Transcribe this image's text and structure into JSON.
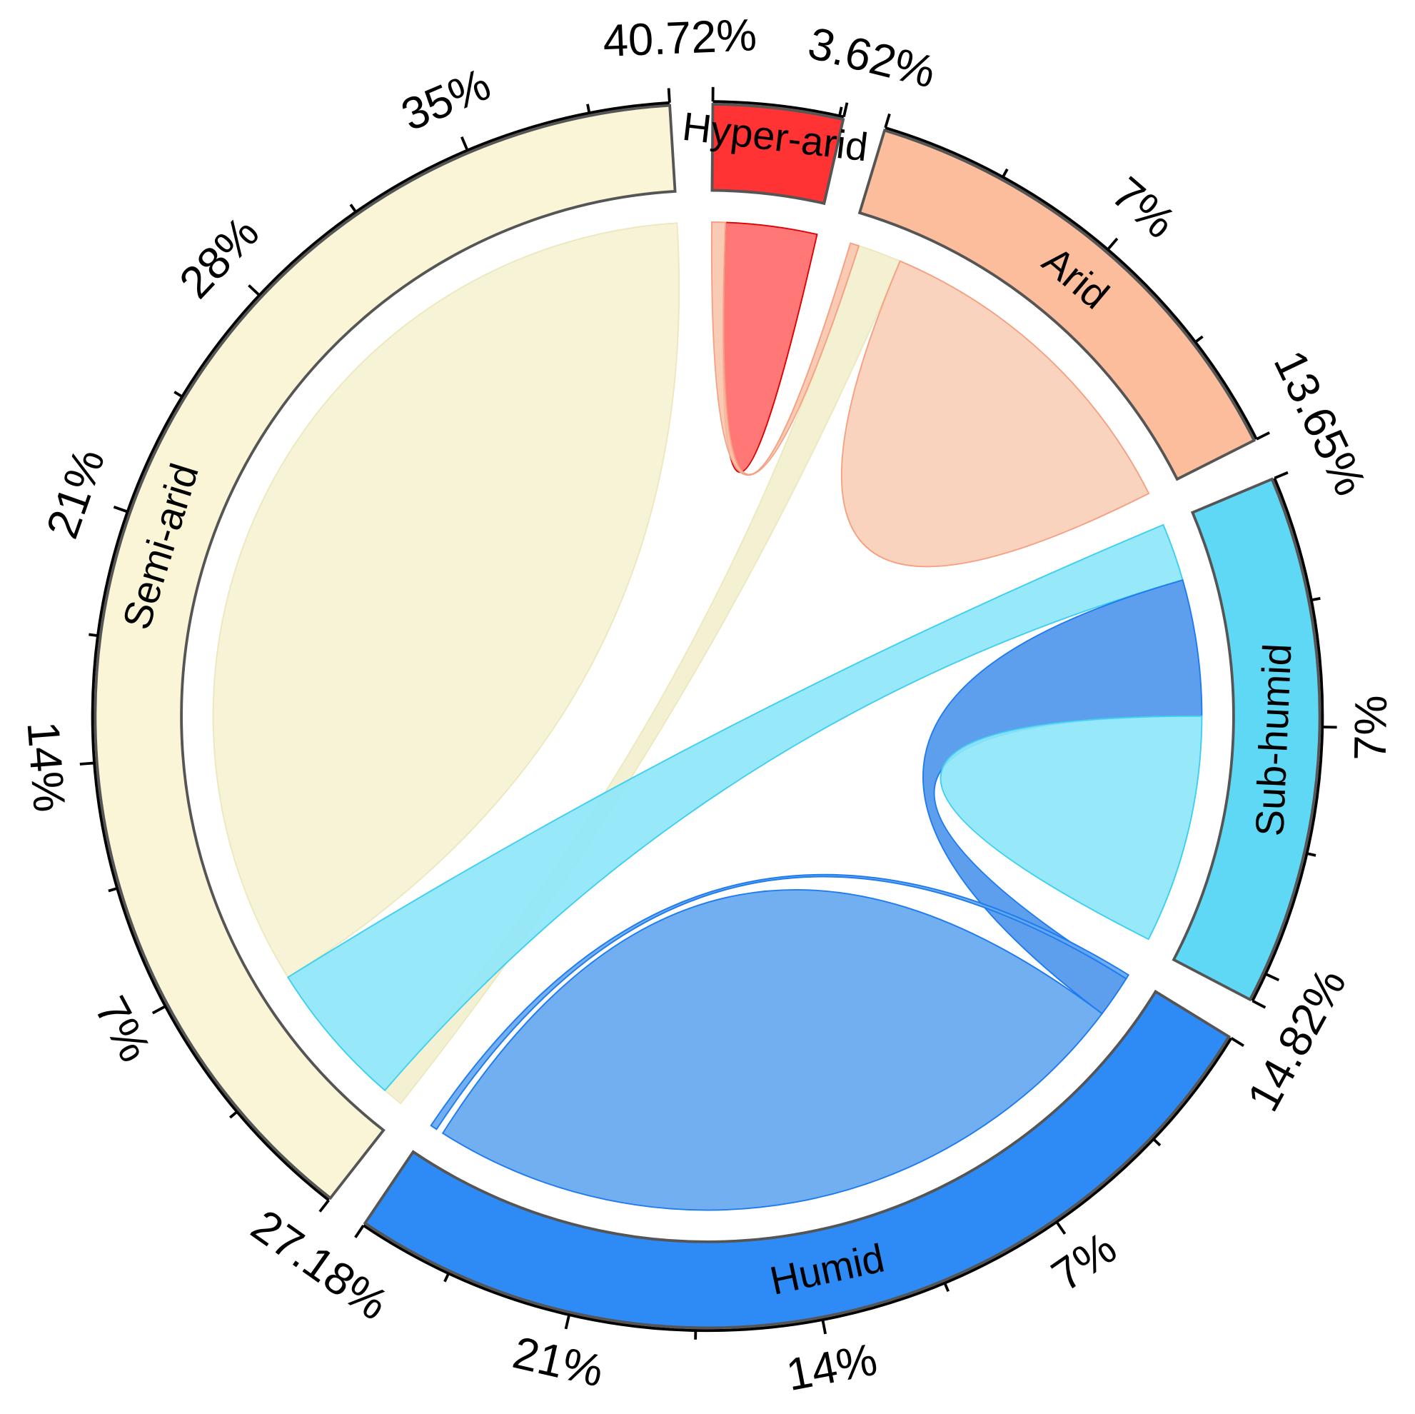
{
  "chart_data": {
    "type": "chord",
    "title": "",
    "sectors": [
      {
        "name": "Hyper-arid",
        "total": 3.62,
        "total_label": "3.62%",
        "color": "#FF3333",
        "tick_labels": []
      },
      {
        "name": "Arid",
        "total": 13.65,
        "total_label": "13.65%",
        "color": "#FBBD9B",
        "tick_labels": [
          "7%"
        ]
      },
      {
        "name": "Sub-humid",
        "total": 14.82,
        "total_label": "14.82%",
        "color": "#5FD8F5",
        "tick_labels": [
          "7%"
        ]
      },
      {
        "name": "Humid",
        "total": 27.18,
        "total_label": "27.18%",
        "color": "#2E8BF5",
        "tick_labels": [
          "7%",
          "14%",
          "21%"
        ]
      },
      {
        "name": "Semi-arid",
        "total": 40.72,
        "total_label": "40.72%",
        "color": "#FAF5D6",
        "tick_labels": [
          "7%",
          "14%",
          "21%",
          "28%",
          "35%"
        ]
      }
    ],
    "tick_major_step": 7,
    "tick_minor_step": 3.5,
    "links": [
      {
        "source": "Semi-arid",
        "source_range": [
          5.9,
          23.3
        ],
        "target": "Semi-arid",
        "target_range": [
          23.3,
          40.72
        ],
        "color": "#F5F2D2"
      },
      {
        "source": "Semi-arid",
        "source_range": [
          0.1,
          0.8
        ],
        "target": "Arid",
        "target_range": [
          0.3,
          1.8
        ],
        "color": "#F3F0CF"
      },
      {
        "source": "Hyper-arid",
        "source_range": [
          0.47,
          2.0
        ],
        "target": "Hyper-arid",
        "target_range": [
          2.0,
          3.62
        ],
        "color": "#FF6B6B"
      },
      {
        "source": "Hyper-arid",
        "source_range": [
          0.0,
          0.47
        ],
        "target": "Arid",
        "target_range": [
          0.0,
          0.3
        ],
        "color": "#F9C6AE"
      },
      {
        "source": "Arid",
        "source_range": [
          1.8,
          7.7
        ],
        "target": "Arid",
        "target_range": [
          7.7,
          13.65
        ],
        "color": "#F9CFB8"
      },
      {
        "source": "Sub-humid",
        "source_range": [
          0.0,
          2.0
        ],
        "target": "Semi-arid",
        "target_range": [
          0.8,
          5.9
        ],
        "color": "#8EE6F8"
      },
      {
        "source": "Sub-humid",
        "source_range": [
          2.0,
          6.7
        ],
        "target": "Humid",
        "target_range": [
          0.15,
          1.6
        ],
        "color": "#4F97EC"
      },
      {
        "source": "Sub-humid",
        "source_range": [
          6.7,
          10.6
        ],
        "target": "Sub-humid",
        "target_range": [
          10.6,
          14.6
        ],
        "color": "#8EE6F8"
      },
      {
        "source": "Humid",
        "source_range": [
          0.0,
          0.15
        ],
        "target": "Humid",
        "target_range": [
          26.95,
          27.18
        ],
        "color": "#66A8F0"
      },
      {
        "source": "Humid",
        "source_range": [
          1.6,
          14.0
        ],
        "target": "Humid",
        "target_range": [
          14.0,
          26.7
        ],
        "color": "#66A8F0"
      }
    ]
  }
}
